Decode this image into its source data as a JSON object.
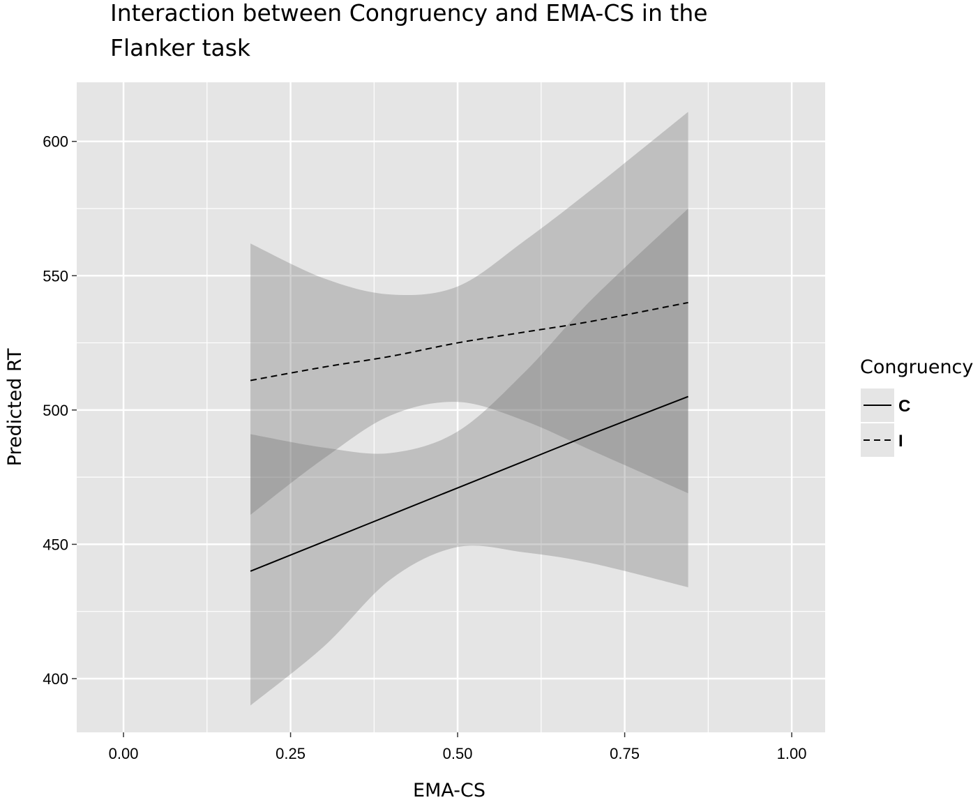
{
  "chart_data": {
    "type": "line",
    "title_lines": [
      "Interaction between Congruency and EMA-CS in the",
      "Flanker task"
    ],
    "xlabel": "EMA-CS",
    "ylabel": "Predicted RT",
    "xlim": [
      -0.07,
      1.05
    ],
    "ylim": [
      380,
      622
    ],
    "x_ticks": [
      0.0,
      0.25,
      0.5,
      0.75,
      1.0
    ],
    "x_tick_labels": [
      "0.00",
      "0.25",
      "0.50",
      "0.75",
      "1.00"
    ],
    "y_ticks": [
      400,
      450,
      500,
      550,
      600
    ],
    "y_tick_labels": [
      "400",
      "450",
      "500",
      "550",
      "600"
    ],
    "grid": true,
    "panel_background": "#e5e5e5",
    "legend": {
      "title": "Congruency",
      "position": "right"
    },
    "series": [
      {
        "name": "C",
        "linetype": "solid",
        "x": [
          0.19,
          0.3,
          0.4,
          0.5,
          0.6,
          0.7,
          0.845
        ],
        "y": [
          440,
          451,
          461,
          471,
          481,
          491,
          505
        ],
        "lower": [
          390,
          412,
          437,
          449,
          447,
          443,
          434
        ],
        "upper": [
          491,
          486,
          484,
          492,
          514,
          541,
          575
        ]
      },
      {
        "name": "I",
        "linetype": "dashed",
        "x": [
          0.19,
          0.3,
          0.4,
          0.5,
          0.6,
          0.7,
          0.845
        ],
        "y": [
          511,
          516,
          520,
          525,
          529,
          533,
          540
        ],
        "lower": [
          461,
          482,
          498,
          503,
          496,
          485,
          469
        ],
        "upper": [
          562,
          549,
          543,
          546,
          563,
          582,
          611
        ]
      }
    ]
  },
  "colors": {
    "ribbon": "#666666",
    "ribbon_opacity": 0.3,
    "grid": "#ffffff",
    "line": "#000000"
  }
}
